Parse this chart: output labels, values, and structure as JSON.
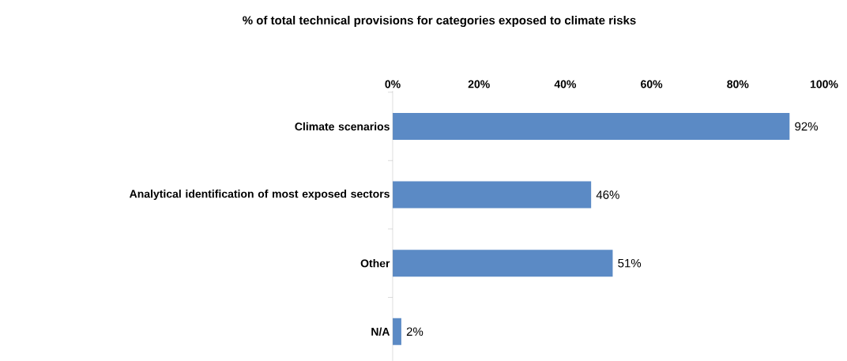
{
  "chart_data": {
    "type": "bar",
    "orientation": "horizontal",
    "title": "% of total technical provisions for categories exposed to climate risks",
    "categories": [
      "Climate scenarios",
      "Analytical identification of most exposed sectors",
      "Other",
      "N/A"
    ],
    "values": [
      92,
      46,
      51,
      2
    ],
    "value_labels": [
      "92%",
      "46%",
      "51%",
      "2%"
    ],
    "color": "#5b8ac5",
    "xlim": [
      0,
      100
    ],
    "xticks": [
      {
        "value": 0,
        "label": "0%"
      },
      {
        "value": 20,
        "label": "20%"
      },
      {
        "value": 40,
        "label": "40%"
      },
      {
        "value": 60,
        "label": "60%"
      },
      {
        "value": 80,
        "label": "80%"
      },
      {
        "value": 100,
        "label": "100%"
      }
    ],
    "grid": false
  }
}
